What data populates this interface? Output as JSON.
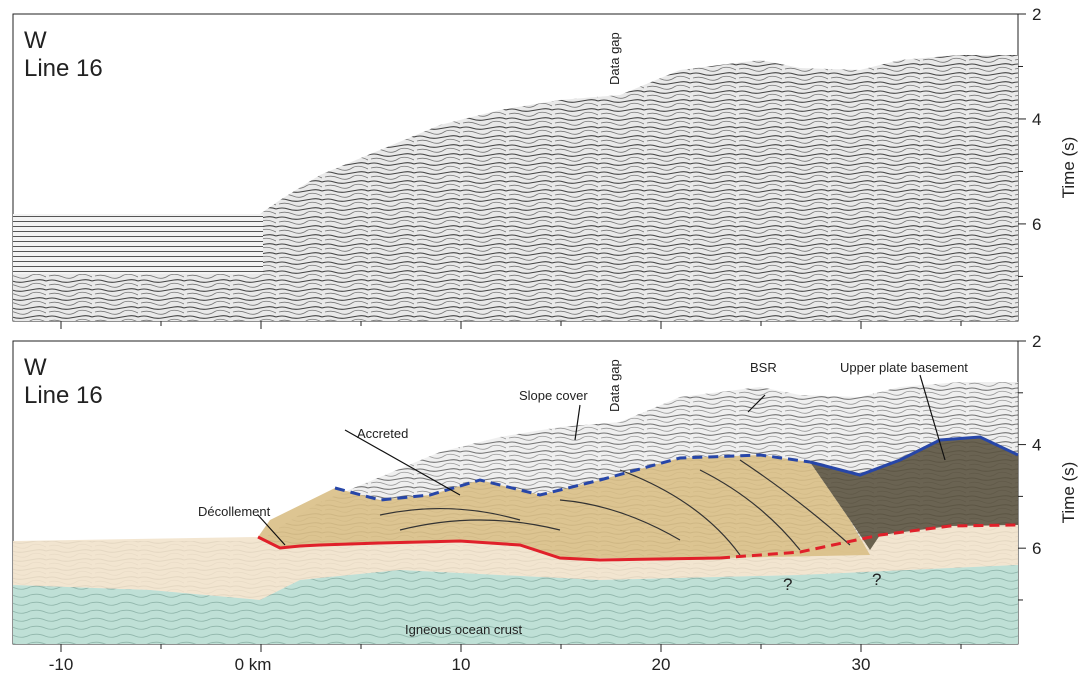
{
  "panels": [
    {
      "title": "W",
      "subtitle": "Line 16",
      "annotations": [
        "Data gap"
      ]
    },
    {
      "title": "W",
      "subtitle": "Line 16",
      "annotations": [
        "Data gap",
        "Slope cover",
        "BSR",
        "Upper plate basement",
        "Accreted",
        "Décollement",
        "Igneous ocean crust",
        "?",
        "?"
      ]
    }
  ],
  "x_axis": {
    "xlim": [
      -12.4,
      37.85
    ],
    "ticks": [
      -10,
      {
        "value": 0,
        "label": "0 km"
      },
      10,
      20,
      30
    ],
    "minor_ticks": [
      -5,
      5,
      15,
      25,
      35
    ]
  },
  "y_axis": {
    "label": "Time (s)",
    "ylim": [
      2,
      7.85
    ],
    "ticks": [
      2,
      4,
      6
    ],
    "minor_ticks": [
      3,
      5,
      7
    ]
  }
}
